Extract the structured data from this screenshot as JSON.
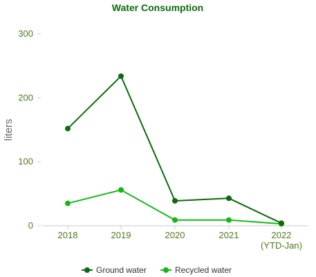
{
  "chart_data": {
    "type": "line",
    "title": "Water Consumption",
    "ylabel": "liters",
    "xlabel": "",
    "categories": [
      "2018",
      "2019",
      "2020",
      "2021",
      "2022"
    ],
    "category_sublabels": [
      "",
      "",
      "",
      "",
      "(YTD-Jan)"
    ],
    "ylim": [
      0,
      300
    ],
    "yticks": [
      0,
      100,
      200,
      300
    ],
    "grid": false,
    "legend_position": "bottom",
    "series": [
      {
        "name": "Ground water",
        "values": [
          152,
          234,
          39,
          43,
          4
        ],
        "color": "#0a6b0a"
      },
      {
        "name": "Recycled water",
        "values": [
          35,
          56,
          9,
          9,
          3
        ],
        "color": "#14b814"
      }
    ],
    "colors": {
      "title": "#0a6b0a",
      "tick": "#4d7a1a",
      "axis": "#c8c8c8",
      "ylabel": "#666666"
    }
  }
}
